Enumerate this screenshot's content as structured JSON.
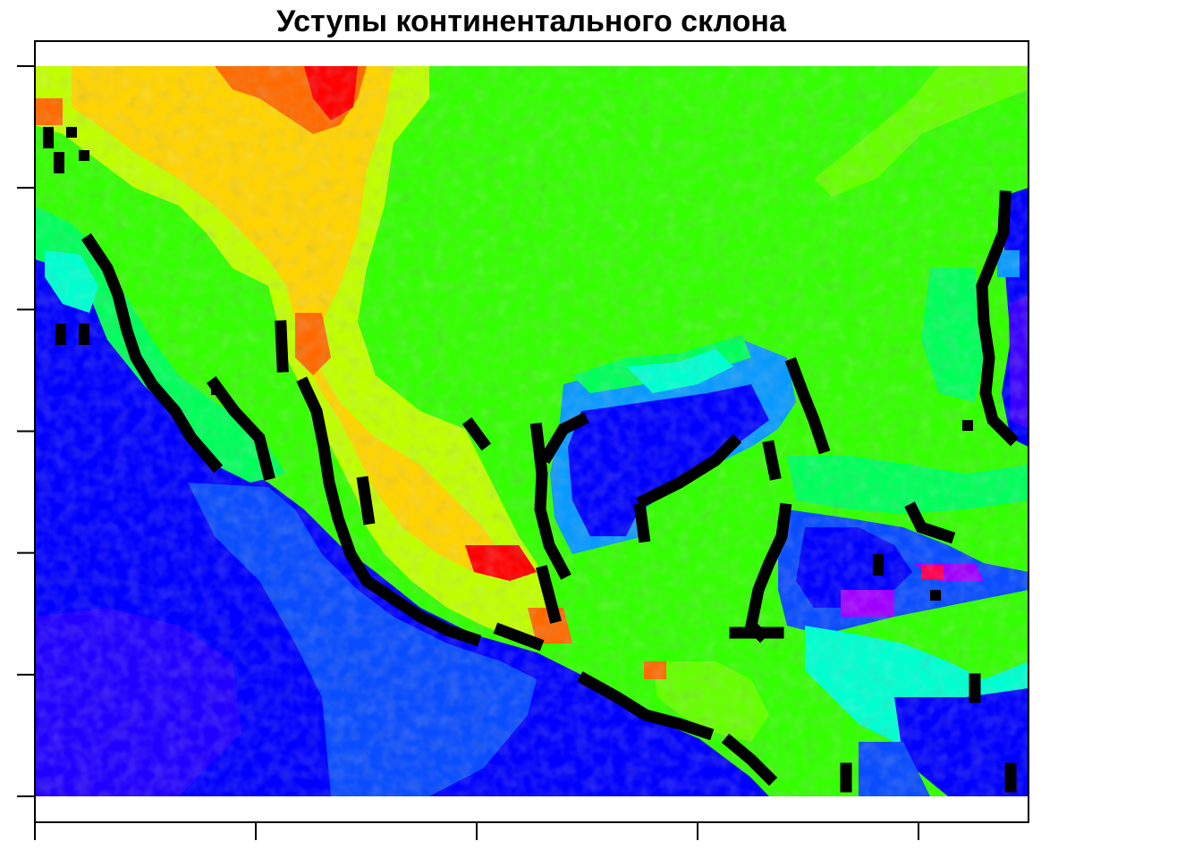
{
  "title": "Уступы континентального склона",
  "map": {
    "type": "raster heatmap",
    "colors": {
      "palette_high_to_low": [
        "#ff0000",
        "#ff6a00",
        "#ffd400",
        "#c0ff00",
        "#33ff00",
        "#00ff5a",
        "#00ffd0",
        "#0a9aff",
        "#0a4dff",
        "#0000ff",
        "#3a00ff",
        "#a000ff",
        "#ff00ff"
      ],
      "scarp": "#000000",
      "frame": "#000000",
      "background": "#ffffff"
    },
    "axes": {
      "y_tick_count": 7,
      "x_tick_count": 5,
      "tick_labels_visible": false
    },
    "features": [
      "highlands in the north-west (yellow to red)",
      "lowland plain in the north and east (green)",
      "deep basin in the west and south-west (blue)",
      "inner basin in the centre-south (blue)",
      "black bands marking continental slope scarps along the basin margins"
    ]
  }
}
